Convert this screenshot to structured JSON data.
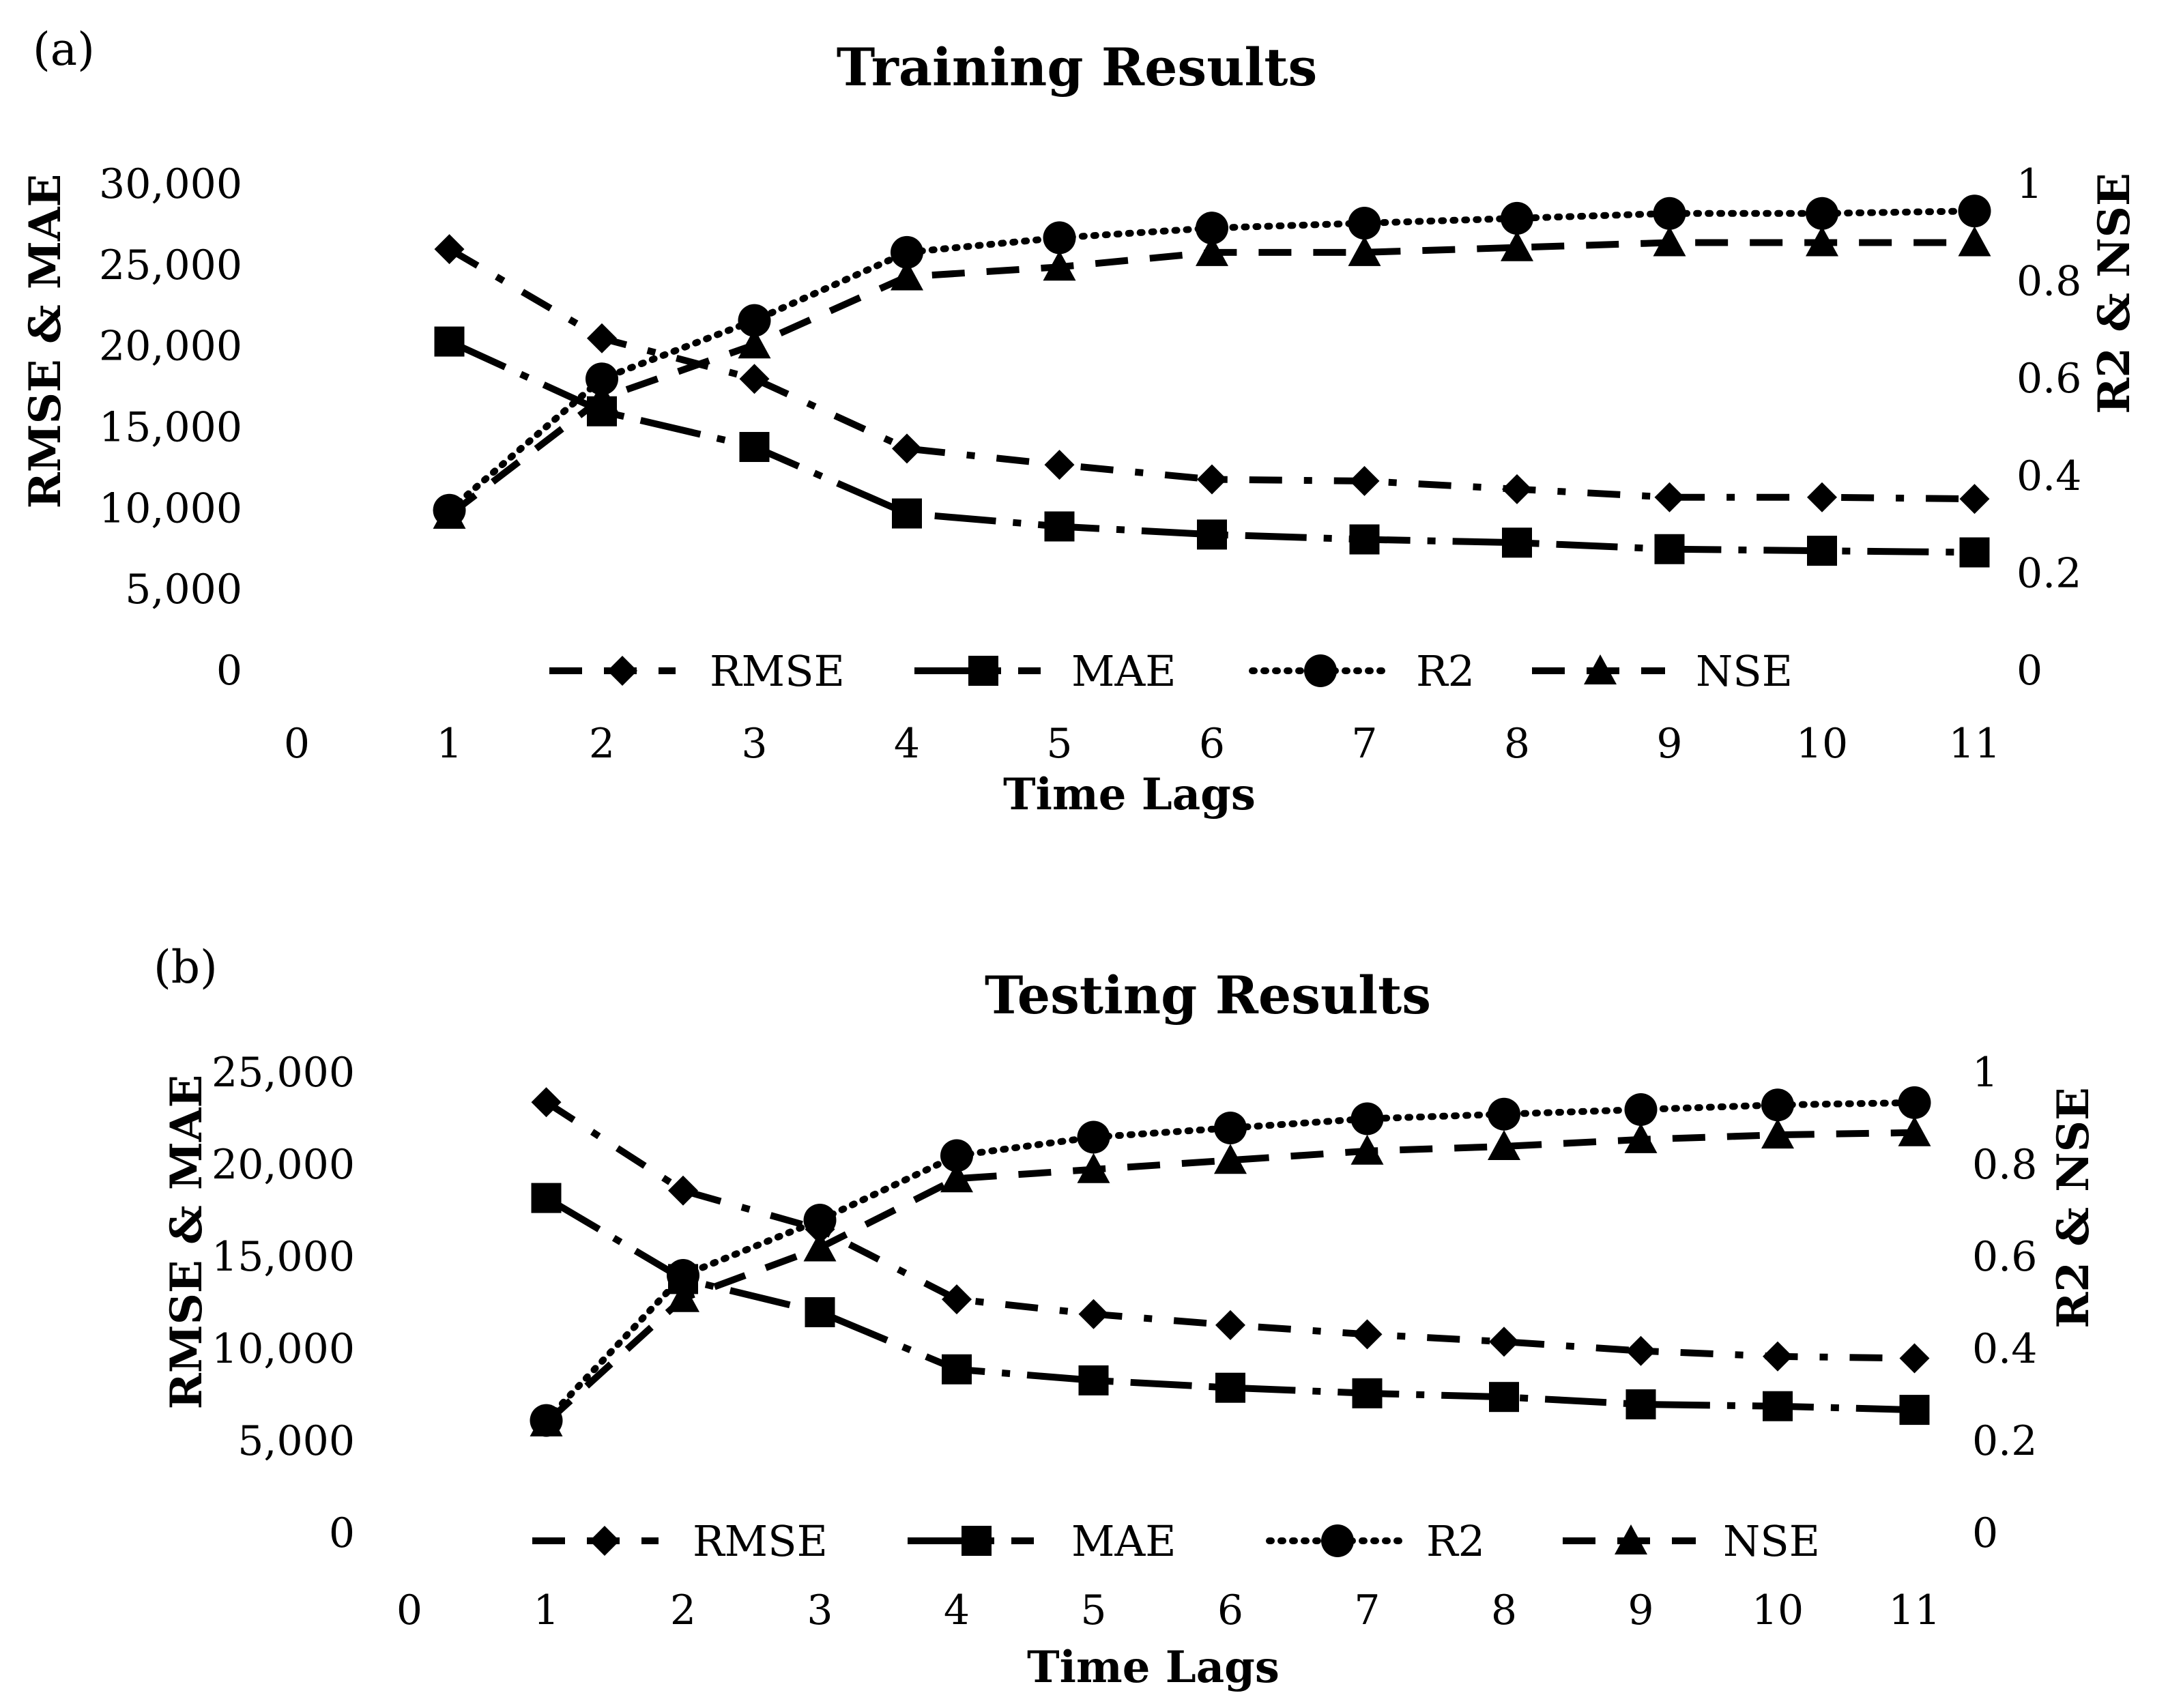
{
  "chart_data": [
    {
      "panel_label": "(a)",
      "type": "line",
      "title": "Training Results",
      "xlabel": "Time Lags",
      "ylabel_left": "RMSE & MAE",
      "ylabel_right": "R2 & NSE",
      "x_ticks": [
        "0",
        "1",
        "2",
        "3",
        "4",
        "5",
        "6",
        "7",
        "8",
        "9",
        "10",
        "11"
      ],
      "y_left_ticks": [
        "0",
        "5,000",
        "10,000",
        "15,000",
        "20,000",
        "25,000",
        "30,000"
      ],
      "y_right_ticks": [
        "0",
        "0.2",
        "0.4",
        "0.6",
        "0.8",
        "1"
      ],
      "ylim_left": [
        0,
        30000
      ],
      "ylim_right": [
        0,
        1
      ],
      "x": [
        1,
        2,
        3,
        4,
        5,
        6,
        7,
        8,
        9,
        10,
        11
      ],
      "legend_position": "bottom-inside",
      "series": [
        {
          "name": "RMSE",
          "axis": "left",
          "marker": "diamond",
          "dash": "rmse",
          "values": [
            26000,
            20500,
            18000,
            13700,
            12700,
            11800,
            11700,
            11200,
            10700,
            10700,
            10600
          ]
        },
        {
          "name": "MAE",
          "axis": "left",
          "marker": "square",
          "dash": "mae",
          "values": [
            20300,
            16000,
            13800,
            9700,
            8900,
            8400,
            8100,
            7900,
            7500,
            7400,
            7300
          ]
        },
        {
          "name": "R2",
          "axis": "right",
          "marker": "circle",
          "dash": "r2",
          "values": [
            0.33,
            0.6,
            0.72,
            0.86,
            0.89,
            0.91,
            0.92,
            0.93,
            0.94,
            0.94,
            0.945
          ]
        },
        {
          "name": "NSE",
          "axis": "right",
          "marker": "triangle",
          "dash": "nse",
          "values": [
            0.32,
            0.56,
            0.67,
            0.81,
            0.83,
            0.86,
            0.86,
            0.87,
            0.88,
            0.88,
            0.88
          ]
        }
      ]
    },
    {
      "panel_label": "(b)",
      "type": "line",
      "title": "Testing Results",
      "xlabel": "Time Lags",
      "ylabel_left": "RMSE & MAE",
      "ylabel_right": "R2 & NSE",
      "x_ticks": [
        "0",
        "1",
        "2",
        "3",
        "4",
        "5",
        "6",
        "7",
        "8",
        "9",
        "10",
        "11"
      ],
      "y_left_ticks": [
        "0",
        "5,000",
        "10,000",
        "15,000",
        "20,000",
        "25,000"
      ],
      "y_right_ticks": [
        "0",
        "0.2",
        "0.4",
        "0.6",
        "0.8",
        "1"
      ],
      "ylim_left": [
        0,
        25000
      ],
      "ylim_right": [
        0,
        1
      ],
      "x": [
        1,
        2,
        3,
        4,
        5,
        6,
        7,
        8,
        9,
        10,
        11
      ],
      "legend_position": "bottom-inside",
      "series": [
        {
          "name": "RMSE",
          "axis": "left",
          "marker": "diamond",
          "dash": "rmse",
          "values": [
            23400,
            18600,
            16500,
            12700,
            11900,
            11300,
            10800,
            10400,
            9900,
            9600,
            9500
          ]
        },
        {
          "name": "MAE",
          "axis": "left",
          "marker": "square",
          "dash": "mae",
          "values": [
            18200,
            13800,
            12000,
            8900,
            8300,
            7900,
            7600,
            7400,
            7000,
            6900,
            6700
          ]
        },
        {
          "name": "R2",
          "axis": "right",
          "marker": "circle",
          "dash": "r2",
          "values": [
            0.245,
            0.56,
            0.68,
            0.82,
            0.86,
            0.88,
            0.9,
            0.91,
            0.92,
            0.93,
            0.935
          ]
        },
        {
          "name": "NSE",
          "axis": "right",
          "marker": "triangle",
          "dash": "nse",
          "values": [
            0.24,
            0.51,
            0.62,
            0.77,
            0.79,
            0.81,
            0.83,
            0.84,
            0.855,
            0.865,
            0.87
          ]
        }
      ]
    }
  ]
}
